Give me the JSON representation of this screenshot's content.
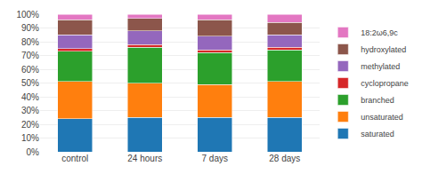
{
  "chart_data": {
    "type": "bar",
    "stacked": true,
    "grid": true,
    "legend": "right",
    "categories": [
      "control",
      "24 hours",
      "7 days",
      "28 days"
    ],
    "series": [
      {
        "name": "saturated",
        "values": [
          24,
          25,
          25,
          25
        ]
      },
      {
        "name": "unsaturated",
        "values": [
          27,
          25,
          24,
          26
        ]
      },
      {
        "name": "branched",
        "values": [
          22,
          26,
          23,
          23
        ]
      },
      {
        "name": "cyclopropane",
        "values": [
          2,
          2,
          2,
          2
        ]
      },
      {
        "name": "methylated",
        "values": [
          10,
          10,
          10,
          9
        ]
      },
      {
        "name": "hydroxylated",
        "values": [
          11,
          9,
          12,
          9
        ]
      },
      {
        "name": "18:2ω6,9c",
        "values": [
          4,
          3,
          4,
          6
        ]
      }
    ],
    "ylim": [
      0,
      100
    ],
    "yticks": [
      {
        "value": 0,
        "label": "0%"
      },
      {
        "value": 10,
        "label": "10%"
      },
      {
        "value": 20,
        "label": "20%"
      },
      {
        "value": 30,
        "label": "30%"
      },
      {
        "value": 40,
        "label": "40%"
      },
      {
        "value": 50,
        "label": "50%"
      },
      {
        "value": 60,
        "label": "60%"
      },
      {
        "value": 70,
        "label": "70%"
      },
      {
        "value": 80,
        "label": "80%"
      },
      {
        "value": 90,
        "label": "90%"
      },
      {
        "value": 100,
        "label": "100%"
      }
    ]
  }
}
